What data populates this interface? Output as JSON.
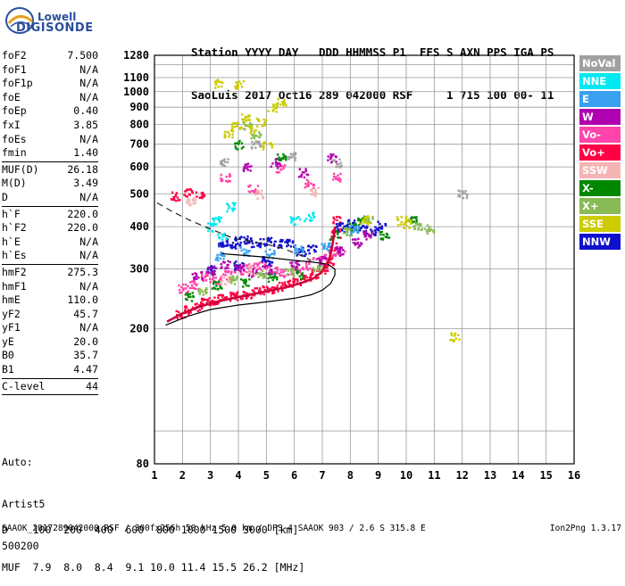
{
  "logo": {
    "brand_top": "Lowell",
    "brand_bottom": "DIGISONDE"
  },
  "header": {
    "line1": "Station YYYY DAY   DDD HHMMSS P1  FFS S AXN PPS IGA PS",
    "line2": "SaoLuis 2017 Oct16 289 042000 RSF     1 715 100 00- 11"
  },
  "parameters": [
    [
      {
        "name": "foF2",
        "value": "7.500"
      },
      {
        "name": "foF1",
        "value": "N/A"
      },
      {
        "name": "foF1p",
        "value": "N/A"
      },
      {
        "name": "foE",
        "value": "N/A"
      },
      {
        "name": "foEp",
        "value": "0.40"
      },
      {
        "name": "fxI",
        "value": "3.85"
      },
      {
        "name": "foEs",
        "value": "N/A"
      },
      {
        "name": "fmin",
        "value": "1.40"
      }
    ],
    [
      {
        "name": "MUF(D)",
        "value": "26.18"
      },
      {
        "name": "M(D)",
        "value": "3.49"
      },
      {
        "name": "D",
        "value": "N/A"
      }
    ],
    [
      {
        "name": "h`F",
        "value": "220.0"
      },
      {
        "name": "h`F2",
        "value": "220.0"
      },
      {
        "name": "h`E",
        "value": "N/A"
      },
      {
        "name": "h`Es",
        "value": "N/A"
      }
    ],
    [
      {
        "name": "hmF2",
        "value": "275.3"
      },
      {
        "name": "hmF1",
        "value": "N/A"
      },
      {
        "name": "hmE",
        "value": "110.0"
      },
      {
        "name": "yF2",
        "value": "45.7"
      },
      {
        "name": "yF1",
        "value": "N/A"
      },
      {
        "name": "yE",
        "value": "20.0"
      },
      {
        "name": "B0",
        "value": "35.7"
      },
      {
        "name": "B1",
        "value": "4.47"
      }
    ],
    [
      {
        "name": "C-level",
        "value": "44"
      }
    ]
  ],
  "auto": {
    "line1": "Auto:",
    "line2": "Artist5",
    "line3": "500200"
  },
  "legend": [
    {
      "label": "NoVal",
      "color": "#a0a0a0"
    },
    {
      "label": "NNE",
      "color": "#00e8f0"
    },
    {
      "label": "E",
      "color": "#3aa0f0"
    },
    {
      "label": "W",
      "color": "#b000b0"
    },
    {
      "label": "Vo-",
      "color": "#ff44aa"
    },
    {
      "label": "Vo+",
      "color": "#ff0044"
    },
    {
      "label": "SSW",
      "color": "#f4b4b4"
    },
    {
      "label": "X-",
      "color": "#008800"
    },
    {
      "label": "X+",
      "color": "#88bb55"
    },
    {
      "label": "SSE",
      "color": "#cccc00"
    },
    {
      "label": "NNW",
      "color": "#1010cc"
    }
  ],
  "dmuf": {
    "d_line": "D    100  200  400  600  800 1000 1500 3000 [km]",
    "muf_line": "MUF  7.9  8.0  8.4  9.1 10.0 11.4 15.5 26.2 [MHz]"
  },
  "footer": {
    "left": "SAAOK_2017289042000.RSF / 300fx256h 50 kHz 5.0 km / DPS-4 SAAOK 903 / 2.6 S 315.8 E",
    "right": "Ion2Png 1.3.17"
  },
  "chart_data": {
    "type": "scatter",
    "xlim": [
      1,
      16
    ],
    "ylim": [
      80,
      1280
    ],
    "x_ticks": [
      1,
      2,
      3,
      4,
      5,
      6,
      7,
      8,
      9,
      10,
      11,
      12,
      13,
      14,
      15,
      16
    ],
    "y_ticks": [
      80,
      200,
      300,
      400,
      500,
      600,
      700,
      800,
      900,
      1000,
      1100,
      1280
    ],
    "x_scale": "linear",
    "y_scale": "log",
    "grid": true,
    "legend_position": "right",
    "series": [
      {
        "name": "Vo+",
        "color": "#ff0044",
        "points": [
          [
            1.9,
            222
          ],
          [
            2.2,
            228
          ],
          [
            2.5,
            234
          ],
          [
            2.8,
            240
          ],
          [
            3.1,
            244
          ],
          [
            3.4,
            247
          ],
          [
            3.7,
            250
          ],
          [
            4.0,
            252
          ],
          [
            4.3,
            255
          ],
          [
            4.6,
            258
          ],
          [
            4.9,
            261
          ],
          [
            5.2,
            264
          ],
          [
            5.5,
            268
          ],
          [
            5.8,
            272
          ],
          [
            6.1,
            278
          ],
          [
            6.4,
            284
          ],
          [
            6.7,
            292
          ],
          [
            7.0,
            302
          ],
          [
            7.2,
            320
          ],
          [
            7.35,
            350
          ],
          [
            7.45,
            385
          ],
          [
            7.5,
            420
          ],
          [
            1.7,
            495
          ],
          [
            2.2,
            505
          ],
          [
            2.6,
            500
          ]
        ]
      },
      {
        "name": "Vo-",
        "color": "#ff44aa",
        "points": [
          [
            2.0,
            265
          ],
          [
            2.4,
            270
          ],
          [
            2.8,
            285
          ],
          [
            3.2,
            280
          ],
          [
            3.6,
            290
          ],
          [
            4.0,
            300
          ],
          [
            4.4,
            305
          ],
          [
            4.8,
            310
          ],
          [
            5.2,
            300
          ],
          [
            5.6,
            295
          ],
          [
            6.0,
            300
          ],
          [
            6.4,
            310
          ],
          [
            6.8,
            320
          ],
          [
            7.2,
            330
          ],
          [
            7.6,
            340
          ],
          [
            3.5,
            560
          ],
          [
            4.5,
            520
          ],
          [
            5.5,
            600
          ],
          [
            6.5,
            540
          ],
          [
            7.5,
            560
          ]
        ]
      },
      {
        "name": "NNW",
        "color": "#1010cc",
        "points": [
          [
            3.4,
            360
          ],
          [
            3.7,
            355
          ],
          [
            4.0,
            365
          ],
          [
            4.3,
            370
          ],
          [
            4.6,
            360
          ],
          [
            5.0,
            365
          ],
          [
            5.4,
            358
          ],
          [
            5.8,
            362
          ],
          [
            6.2,
            340
          ],
          [
            6.6,
            345
          ],
          [
            7.6,
            400
          ],
          [
            8.0,
            410
          ],
          [
            8.4,
            395
          ],
          [
            8.8,
            390
          ],
          [
            9.1,
            405
          ],
          [
            3.0,
            300
          ],
          [
            4.0,
            310
          ],
          [
            5.0,
            320
          ]
        ]
      },
      {
        "name": "W",
        "color": "#b000b0",
        "points": [
          [
            2.5,
            290
          ],
          [
            3.0,
            300
          ],
          [
            3.5,
            310
          ],
          [
            4.0,
            305
          ],
          [
            4.5,
            295
          ],
          [
            5.0,
            300
          ],
          [
            6.0,
            310
          ],
          [
            7.0,
            320
          ],
          [
            7.6,
            340
          ],
          [
            8.2,
            360
          ],
          [
            8.6,
            380
          ],
          [
            4.3,
            600
          ],
          [
            5.3,
            620
          ],
          [
            6.3,
            580
          ],
          [
            7.3,
            640
          ]
        ]
      },
      {
        "name": "X-",
        "color": "#008800",
        "points": [
          [
            2.2,
            250
          ],
          [
            3.2,
            270
          ],
          [
            4.2,
            275
          ],
          [
            5.2,
            285
          ],
          [
            6.2,
            290
          ],
          [
            7.4,
            380
          ],
          [
            8.0,
            400
          ],
          [
            8.4,
            420
          ],
          [
            9.2,
            380
          ],
          [
            10.2,
            420
          ],
          [
            4.0,
            700
          ],
          [
            5.5,
            650
          ]
        ]
      },
      {
        "name": "X+",
        "color": "#88bb55",
        "points": [
          [
            2.7,
            260
          ],
          [
            3.8,
            280
          ],
          [
            4.8,
            290
          ],
          [
            5.8,
            295
          ],
          [
            6.8,
            300
          ],
          [
            7.9,
            390
          ],
          [
            8.6,
            420
          ],
          [
            10.4,
            405
          ],
          [
            10.8,
            395
          ],
          [
            4.3,
            800
          ],
          [
            4.6,
            750
          ]
        ]
      },
      {
        "name": "SSE",
        "color": "#cccc00",
        "points": [
          [
            3.6,
            760
          ],
          [
            3.9,
            800
          ],
          [
            4.2,
            840
          ],
          [
            4.5,
            780
          ],
          [
            4.8,
            820
          ],
          [
            5.2,
            900
          ],
          [
            5.5,
            940
          ],
          [
            4.0,
            1050
          ],
          [
            3.3,
            1060
          ],
          [
            5.0,
            700
          ],
          [
            8.5,
            420
          ],
          [
            9.8,
            420
          ],
          [
            10.0,
            410
          ],
          [
            11.7,
            190
          ]
        ]
      },
      {
        "name": "NNE",
        "color": "#00e8f0",
        "points": [
          [
            3.0,
            400
          ],
          [
            3.2,
            420
          ],
          [
            3.4,
            380
          ],
          [
            6.0,
            420
          ],
          [
            6.5,
            430
          ],
          [
            3.7,
            460
          ]
        ]
      },
      {
        "name": "E",
        "color": "#3aa0f0",
        "points": [
          [
            3.3,
            330
          ],
          [
            4.2,
            340
          ],
          [
            5.1,
            335
          ],
          [
            6.1,
            345
          ],
          [
            7.1,
            350
          ],
          [
            8.1,
            395
          ]
        ]
      },
      {
        "name": "SSW",
        "color": "#f4b4b4",
        "points": [
          [
            2.3,
            480
          ],
          [
            4.7,
            500
          ],
          [
            6.7,
            510
          ],
          [
            3.5,
            280
          ],
          [
            4.5,
            300
          ]
        ]
      },
      {
        "name": "NoVal",
        "color": "#a0a0a0",
        "points": [
          [
            3.5,
            620
          ],
          [
            4.6,
            700
          ],
          [
            5.9,
            650
          ],
          [
            7.5,
            620
          ],
          [
            12.0,
            500
          ]
        ]
      }
    ],
    "lines": [
      {
        "name": "profile",
        "color": "#000000",
        "style": "solid",
        "points": [
          [
            1.4,
            205
          ],
          [
            2.2,
            218
          ],
          [
            3.0,
            228
          ],
          [
            4.0,
            235
          ],
          [
            5.0,
            240
          ],
          [
            6.0,
            246
          ],
          [
            6.6,
            252
          ],
          [
            7.0,
            260
          ],
          [
            7.3,
            272
          ],
          [
            7.45,
            288
          ],
          [
            7.45,
            300
          ],
          [
            7.2,
            310
          ],
          [
            6.6,
            315
          ],
          [
            6.0,
            318
          ],
          [
            5.0,
            325
          ],
          [
            4.0,
            330
          ],
          [
            3.4,
            333
          ]
        ]
      },
      {
        "name": "trace",
        "color": "#d0003a",
        "style": "solid",
        "points": [
          [
            1.45,
            210
          ],
          [
            2.0,
            222
          ],
          [
            2.6,
            232
          ],
          [
            3.2,
            240
          ],
          [
            3.8,
            246
          ],
          [
            4.4,
            252
          ],
          [
            5.0,
            258
          ],
          [
            5.6,
            264
          ],
          [
            6.2,
            272
          ],
          [
            6.7,
            282
          ],
          [
            7.0,
            295
          ],
          [
            7.25,
            320
          ],
          [
            7.38,
            360
          ],
          [
            7.45,
            400
          ]
        ]
      },
      {
        "name": "prediction",
        "color": "#222222",
        "style": "dashed",
        "points": [
          [
            1.1,
            470
          ],
          [
            1.6,
            445
          ],
          [
            2.2,
            420
          ],
          [
            2.8,
            400
          ],
          [
            3.3,
            385
          ],
          [
            3.8,
            370
          ],
          [
            4.4,
            362
          ],
          [
            5.0,
            355
          ],
          [
            5.6,
            345
          ],
          [
            6.2,
            330
          ],
          [
            6.6,
            318
          ]
        ]
      }
    ]
  }
}
